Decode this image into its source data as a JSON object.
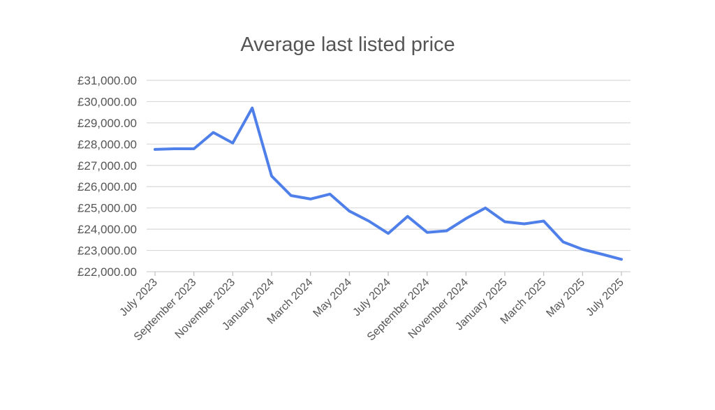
{
  "chart_data": {
    "type": "line",
    "title": "Average last listed price",
    "xlabel": "",
    "ylabel": "",
    "ylim": [
      22000,
      31000
    ],
    "yticks": [
      "£22,000.00",
      "£23,000.00",
      "£24,000.00",
      "£25,000.00",
      "£26,000.00",
      "£27,000.00",
      "£28,000.00",
      "£29,000.00",
      "£30,000.00",
      "£31,000.00"
    ],
    "ytick_values": [
      22000,
      23000,
      24000,
      25000,
      26000,
      27000,
      28000,
      29000,
      30000,
      31000
    ],
    "xtick_labels": [
      "July 2023",
      "September 2023",
      "November 2023",
      "January 2024",
      "March 2024",
      "May 2024",
      "July 2024",
      "September 2024",
      "November 2024",
      "January 2025",
      "March 2025",
      "May 2025",
      "July 2025"
    ],
    "x": [
      "Jul 2023",
      "Aug 2023",
      "Sep 2023",
      "Oct 2023",
      "Nov 2023",
      "Dec 2023",
      "Jan 2024",
      "Feb 2024",
      "Mar 2024",
      "Apr 2024",
      "May 2024",
      "Jun 2024",
      "Jul 2024",
      "Aug 2024",
      "Sep 2024",
      "Oct 2024",
      "Nov 2024",
      "Dec 2024",
      "Jan 2025",
      "Feb 2025",
      "Mar 2025",
      "Apr 2025",
      "May 2025",
      "Jun 2025",
      "Jul 2025"
    ],
    "series": [
      {
        "values": [
          27750,
          27780,
          27780,
          28550,
          28050,
          29700,
          26500,
          25580,
          25420,
          25650,
          24850,
          24380,
          23800,
          24600,
          23850,
          23920,
          24500,
          25000,
          24350,
          24250,
          24380,
          23400,
          23050,
          22820,
          22580
        ],
        "color": "#4F7FE8"
      }
    ],
    "grid": true,
    "legend": "none",
    "gridline_color": "#d9d9d9",
    "text_color": "#555555"
  }
}
